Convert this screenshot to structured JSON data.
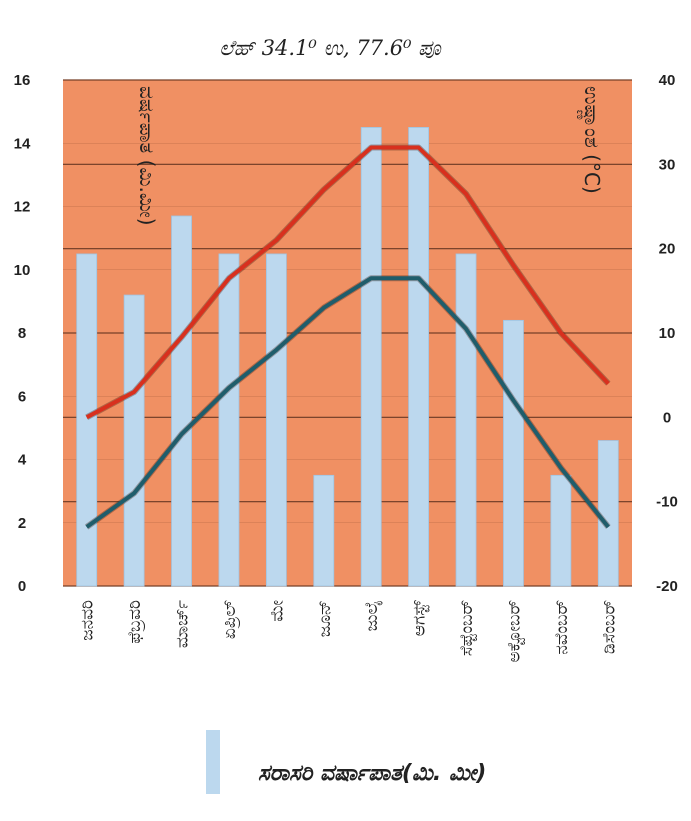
{
  "chart_data": {
    "type": "bar",
    "title": "ಲೆಹ್ 34.1⁰ ಉ, 77.6⁰ ಪೂ",
    "ylabel_left": "ವರ್ಷಪಾತ (ಮಿ.ಮೀ)",
    "ylabel_right": "ಉಷ್ಣಾಂಶ (°C)",
    "categories": [
      "ಜನವರಿ",
      "ಫೆಬ್ರವರಿ",
      "ಮಾರ್ಚ್",
      "ಏಪ್ರಿಲ್",
      "ಮೇ",
      "ಜೂನ್",
      "ಜುಲೈ",
      "ಆಗಸ್ಟ್",
      "ಸೆಪ್ಟೆಂಬರ್",
      "ಅಕ್ಟೋಬರ್",
      "ನವೆಂಬರ್",
      "ಡಿಸೆಂಬರ್"
    ],
    "left_axis": {
      "range": [
        0,
        16
      ],
      "ticks": [
        "0",
        "2",
        "4",
        "6",
        "8",
        "10",
        "12",
        "14",
        "16"
      ]
    },
    "right_axis": {
      "range": [
        -20,
        40
      ],
      "ticks": [
        "-20",
        "-10",
        "0",
        "10",
        "20",
        "30",
        "40"
      ]
    },
    "series": [
      {
        "name": "ಸರಾಸರಿ ವರ್ಷಾಪಾತ(ಮಿ. ಮೀ)",
        "type": "bar",
        "axis": "left",
        "color": "#bcd8ee",
        "values": [
          10.5,
          9.2,
          11.7,
          10.5,
          10.5,
          3.5,
          14.5,
          14.5,
          10.5,
          8.4,
          3.5,
          4.6
        ]
      },
      {
        "type": "line",
        "axis": "right",
        "color": "#d8301e",
        "values": [
          0,
          3,
          9.5,
          16.5,
          21,
          27,
          32,
          32,
          26.5,
          18,
          10,
          4
        ]
      },
      {
        "type": "line",
        "axis": "right",
        "color": "#1f5d6b",
        "values": [
          -13,
          -9,
          -2,
          3.5,
          8,
          13,
          16.5,
          16.5,
          10.5,
          2,
          -6,
          -13
        ]
      }
    ],
    "plot_background": "#f09063",
    "gridlines": "horizontal",
    "legend": {
      "position": "bottom",
      "label": "ಸರಾಸರಿ ವರ್ಷಾಪಾತ(ಮಿ. ಮೀ)"
    }
  }
}
